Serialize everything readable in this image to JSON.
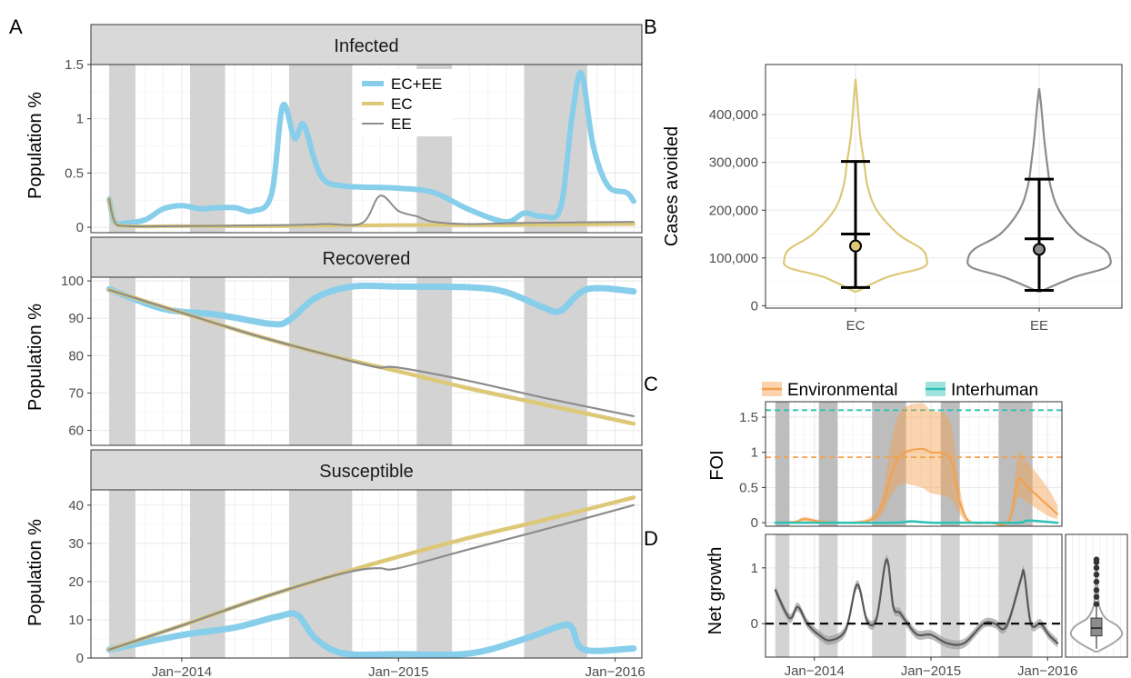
{
  "colors": {
    "ec_ee": "#87CEEB",
    "ec": "#DDC877",
    "ee": "#8C8C8C",
    "environmental": "#F5A04C",
    "interhuman": "#2CC1B5",
    "season_band": "#D3D3D3",
    "grid": "#EBEBEB",
    "strip": "#D9D9D9"
  },
  "panel_letters": [
    "A",
    "B",
    "C",
    "D"
  ],
  "chart_data": [
    {
      "id": "infected",
      "type": "line",
      "panel": "A",
      "strip": "Infected",
      "ylabel": "Population %",
      "ylim": [
        -0.05,
        1.5
      ],
      "yticks": [
        0,
        0.5,
        1,
        1.5
      ],
      "ytick_labels": [
        "0",
        "0.5",
        "1",
        "1.5"
      ],
      "xlim": [
        "2013-08-01",
        "2016-02-15"
      ],
      "xticks": [
        "2014-01-01",
        "2015-01-01",
        "2016-01-01"
      ],
      "xtick_labels": [
        "Jan−2014",
        "Jan−2015",
        "Jan−2016"
      ],
      "show_xticks": false,
      "legend": [
        {
          "name": "EC+EE",
          "color": "ec_ee"
        },
        {
          "name": "EC",
          "color": "ec"
        },
        {
          "name": "EE",
          "color": "ee"
        }
      ],
      "series": [
        {
          "name": "EC+EE",
          "color": "ec_ee",
          "x": [
            "2013-09-01",
            "2013-09-10",
            "2013-10-01",
            "2013-11-01",
            "2013-12-01",
            "2014-01-01",
            "2014-02-01",
            "2014-03-01",
            "2014-04-01",
            "2014-05-01",
            "2014-06-01",
            "2014-06-20",
            "2014-07-10",
            "2014-07-25",
            "2014-08-15",
            "2014-09-01",
            "2014-10-01",
            "2014-11-01",
            "2015-01-01",
            "2015-03-01",
            "2015-05-01",
            "2015-07-01",
            "2015-08-01",
            "2015-09-01",
            "2015-10-01",
            "2015-10-20",
            "2015-11-05",
            "2015-11-25",
            "2015-12-20",
            "2016-01-20",
            "2016-02-01"
          ],
          "y": [
            0.26,
            0.05,
            0.04,
            0.07,
            0.17,
            0.2,
            0.17,
            0.18,
            0.18,
            0.15,
            0.3,
            1.12,
            0.82,
            0.95,
            0.58,
            0.42,
            0.38,
            0.37,
            0.36,
            0.32,
            0.16,
            0.05,
            0.13,
            0.1,
            0.18,
            1.0,
            1.42,
            0.75,
            0.38,
            0.32,
            0.24
          ]
        },
        {
          "name": "EC",
          "color": "ec",
          "x": [
            "2013-09-01",
            "2013-09-10",
            "2013-10-01",
            "2014-01-01",
            "2014-07-01",
            "2015-01-01",
            "2015-07-01",
            "2016-02-01"
          ],
          "y": [
            0.26,
            0.05,
            0.01,
            0.01,
            0.01,
            0.02,
            0.02,
            0.03
          ]
        },
        {
          "name": "EE",
          "color": "ee",
          "x": [
            "2013-09-01",
            "2013-09-10",
            "2013-10-01",
            "2014-01-01",
            "2014-07-01",
            "2014-09-01",
            "2014-11-01",
            "2014-12-01",
            "2015-01-01",
            "2015-02-01",
            "2015-03-01",
            "2015-05-01",
            "2015-08-01",
            "2016-02-01"
          ],
          "y": [
            0.26,
            0.05,
            0.01,
            0.01,
            0.02,
            0.03,
            0.04,
            0.29,
            0.15,
            0.1,
            0.05,
            0.03,
            0.04,
            0.05
          ]
        }
      ]
    },
    {
      "id": "recovered",
      "type": "line",
      "panel": "A",
      "strip": "Recovered",
      "ylabel": "Population %",
      "ylim": [
        56,
        101
      ],
      "yticks": [
        60,
        70,
        80,
        90,
        100
      ],
      "ytick_labels": [
        "60",
        "70",
        "80",
        "90",
        "100"
      ],
      "xlim": [
        "2013-08-01",
        "2016-02-15"
      ],
      "xticks": [
        "2014-01-01",
        "2015-01-01",
        "2016-01-01"
      ],
      "xtick_labels": [
        "Jan−2014",
        "Jan−2015",
        "Jan−2016"
      ],
      "show_xticks": false,
      "series": [
        {
          "name": "EC+EE",
          "color": "ec_ee",
          "x": [
            "2013-09-01",
            "2013-12-01",
            "2014-03-01",
            "2014-06-01",
            "2014-07-01",
            "2014-08-15",
            "2014-10-15",
            "2015-01-01",
            "2015-05-01",
            "2015-07-01",
            "2015-09-01",
            "2015-10-01",
            "2015-11-15",
            "2016-02-01"
          ],
          "y": [
            97.8,
            92.5,
            91,
            88.5,
            89.5,
            95.5,
            98.5,
            98.5,
            98.3,
            97,
            93,
            92,
            97.8,
            97.2
          ]
        },
        {
          "name": "EC",
          "color": "ec",
          "x": [
            "2013-09-01",
            "2014-01-01",
            "2014-05-01",
            "2014-09-01",
            "2015-01-01",
            "2015-05-01",
            "2015-09-01",
            "2016-02-01"
          ],
          "y": [
            97.6,
            91.5,
            85.6,
            80.3,
            75.8,
            71.2,
            67,
            61.8
          ]
        },
        {
          "name": "EE",
          "color": "ee",
          "x": [
            "2013-09-01",
            "2014-01-01",
            "2014-05-01",
            "2014-09-01",
            "2014-11-01",
            "2014-12-01",
            "2015-01-01",
            "2015-05-01",
            "2015-09-01",
            "2016-02-01"
          ],
          "y": [
            97.6,
            91.5,
            85.6,
            80.3,
            77.8,
            76.8,
            76.8,
            73.2,
            68.8,
            63.8
          ]
        }
      ]
    },
    {
      "id": "susceptible",
      "type": "line",
      "panel": "A",
      "strip": "Susceptible",
      "ylabel": "Population %",
      "ylim": [
        0,
        44
      ],
      "yticks": [
        0,
        10,
        20,
        30,
        40
      ],
      "ytick_labels": [
        "0",
        "10",
        "20",
        "30",
        "40"
      ],
      "xlim": [
        "2013-08-01",
        "2016-02-15"
      ],
      "xticks": [
        "2014-01-01",
        "2015-01-01",
        "2016-01-01"
      ],
      "xtick_labels": [
        "Jan−2014",
        "Jan−2015",
        "Jan−2016"
      ],
      "show_xticks": true,
      "series": [
        {
          "name": "EC+EE",
          "color": "ec_ee",
          "x": [
            "2013-09-01",
            "2014-01-01",
            "2014-04-01",
            "2014-06-15",
            "2014-07-15",
            "2014-08-15",
            "2014-10-01",
            "2015-01-01",
            "2015-05-01",
            "2015-08-01",
            "2015-10-01",
            "2015-10-20",
            "2015-11-10",
            "2016-02-01"
          ],
          "y": [
            2.2,
            6,
            8,
            11,
            11.2,
            5,
            1.2,
            1,
            1.2,
            5,
            8.4,
            8,
            2.2,
            2.5
          ]
        },
        {
          "name": "EC",
          "color": "ec",
          "x": [
            "2013-09-01",
            "2014-01-01",
            "2014-05-01",
            "2014-09-01",
            "2015-01-01",
            "2015-05-01",
            "2015-09-01",
            "2016-02-01"
          ],
          "y": [
            2.2,
            8.5,
            15,
            21,
            26.5,
            31.5,
            36,
            42
          ]
        },
        {
          "name": "EE",
          "color": "ee",
          "x": [
            "2013-09-01",
            "2014-01-01",
            "2014-05-01",
            "2014-09-01",
            "2014-11-01",
            "2014-12-01",
            "2015-01-01",
            "2015-05-01",
            "2015-09-01",
            "2016-02-01"
          ],
          "y": [
            2.2,
            8.5,
            15,
            21,
            23.2,
            23.5,
            23.5,
            28.5,
            33.5,
            40
          ]
        }
      ]
    },
    {
      "id": "cases-avoided",
      "type": "violin",
      "panel": "B",
      "ylabel": "Cases avoided",
      "ylim": [
        -5000,
        505000
      ],
      "yticks": [
        0,
        100000,
        200000,
        300000,
        400000
      ],
      "ytick_labels": [
        "0",
        "100,000",
        "200,000",
        "300,000",
        "400,000"
      ],
      "categories": [
        "EC",
        "EE"
      ],
      "groups": [
        {
          "name": "EC",
          "color": "ec",
          "density_y": [
            30000,
            60000,
            80000,
            100000,
            120000,
            150000,
            200000,
            250000,
            300000,
            350000,
            400000,
            440000,
            475000
          ],
          "density_w": [
            0.02,
            0.45,
            0.95,
            1.0,
            0.92,
            0.6,
            0.3,
            0.17,
            0.12,
            0.07,
            0.04,
            0.02,
            0.0
          ],
          "point": 125000,
          "median": 150000,
          "lower": 38000,
          "upper": 302000
        },
        {
          "name": "EE",
          "color": "ee",
          "density_y": [
            30000,
            60000,
            80000,
            100000,
            120000,
            150000,
            200000,
            250000,
            300000,
            350000,
            400000,
            430000,
            455000
          ],
          "density_w": [
            0.02,
            0.5,
            0.95,
            1.0,
            0.9,
            0.55,
            0.28,
            0.16,
            0.11,
            0.07,
            0.04,
            0.02,
            0.0
          ],
          "point": 118000,
          "median": 140000,
          "lower": 32000,
          "upper": 265000
        }
      ]
    },
    {
      "id": "foi",
      "type": "line",
      "panel": "C",
      "ylabel": "FOI",
      "ylim": [
        -0.05,
        1.72
      ],
      "yticks": [
        0,
        0.5,
        1,
        1.5
      ],
      "ytick_labels": [
        "0",
        "0.5",
        "1",
        "1.5"
      ],
      "xlim": [
        "2013-08-01",
        "2016-02-15"
      ],
      "legend": [
        {
          "name": "Environmental",
          "color": "environmental"
        },
        {
          "name": "Interhuman",
          "color": "interhuman"
        }
      ],
      "hlines": [
        {
          "y": 1.6,
          "color": "interhuman"
        },
        {
          "y": 0.93,
          "color": "environmental"
        }
      ],
      "series": [
        {
          "name": "Environmental",
          "color": "environmental",
          "x": [
            "2013-09-01",
            "2013-11-01",
            "2013-12-01",
            "2014-02-01",
            "2014-05-01",
            "2014-07-01",
            "2014-08-01",
            "2014-09-01",
            "2014-10-01",
            "2014-12-01",
            "2015-01-01",
            "2015-03-01",
            "2015-04-01",
            "2015-05-01",
            "2015-07-01",
            "2015-09-01",
            "2015-10-01",
            "2015-11-01",
            "2016-01-01",
            "2016-02-01"
          ],
          "y": [
            0.0,
            0.01,
            0.05,
            0.01,
            0.0,
            0.05,
            0.25,
            0.7,
            0.97,
            1.05,
            1.0,
            0.92,
            0.3,
            0.02,
            0.0,
            0.02,
            0.6,
            0.5,
            0.25,
            0.12
          ],
          "lower": [
            0.0,
            0.0,
            0.02,
            0.0,
            0.0,
            0.02,
            0.12,
            0.4,
            0.55,
            0.5,
            0.42,
            0.35,
            0.12,
            0.0,
            0.0,
            0.0,
            0.35,
            0.28,
            0.1,
            0.05
          ],
          "upper": [
            0.02,
            0.03,
            0.08,
            0.03,
            0.02,
            0.1,
            0.38,
            1.2,
            1.6,
            1.7,
            1.6,
            1.45,
            0.5,
            0.04,
            0.02,
            0.05,
            0.95,
            0.85,
            0.5,
            0.25
          ]
        },
        {
          "name": "Interhuman",
          "color": "interhuman",
          "x": [
            "2013-09-01",
            "2014-01-01",
            "2014-09-01",
            "2014-11-01",
            "2015-01-01",
            "2015-05-01",
            "2015-10-01",
            "2015-11-01",
            "2016-02-01"
          ],
          "y": [
            0.0,
            0.0,
            0.0,
            0.02,
            0.0,
            0.0,
            0.0,
            0.03,
            0.0
          ]
        }
      ]
    },
    {
      "id": "net-growth",
      "type": "line",
      "panel": "D",
      "ylabel": "Net growth",
      "ylim": [
        -0.6,
        1.6
      ],
      "yticks": [
        0,
        1
      ],
      "ytick_labels": [
        "0",
        "1"
      ],
      "xlim": [
        "2013-08-01",
        "2016-02-15"
      ],
      "xticks": [
        "2014-01-01",
        "2015-01-01",
        "2016-01-01"
      ],
      "xtick_labels": [
        "Jan−2014",
        "Jan−2015",
        "Jan−2016"
      ],
      "hline": 0,
      "series": [
        {
          "name": "Net growth",
          "color": "ee",
          "x": [
            "2013-09-01",
            "2013-10-15",
            "2013-11-10",
            "2013-12-10",
            "2014-01-15",
            "2014-02-20",
            "2014-04-10",
            "2014-05-15",
            "2014-06-15",
            "2014-07-15",
            "2014-08-15",
            "2014-09-05",
            "2014-09-25",
            "2014-10-20",
            "2014-11-20",
            "2015-01-01",
            "2015-02-20",
            "2015-04-15",
            "2015-06-15",
            "2015-07-20",
            "2015-08-15",
            "2015-09-05",
            "2015-10-10",
            "2015-10-20",
            "2015-11-10",
            "2015-12-10",
            "2016-01-05",
            "2016-02-01"
          ],
          "y": [
            0.6,
            0.1,
            0.3,
            0.0,
            -0.2,
            -0.3,
            -0.1,
            0.7,
            0.05,
            0.1,
            1.15,
            0.3,
            0.2,
            0.0,
            -0.2,
            -0.2,
            -0.35,
            -0.35,
            0.0,
            0.0,
            -0.1,
            0.1,
            0.8,
            0.9,
            0.0,
            0.0,
            -0.2,
            -0.35
          ],
          "band": 0.08
        }
      ]
    }
  ],
  "net_growth_violin": {
    "type": "violin",
    "ylim": [
      -0.6,
      1.6
    ],
    "density_y": [
      -0.5,
      -0.35,
      -0.2,
      -0.05,
      0.1,
      0.3,
      0.5,
      0.7,
      0.9,
      1.1
    ],
    "density_w": [
      0.05,
      0.65,
      1.0,
      0.85,
      0.35,
      0.12,
      0.06,
      0.04,
      0.03,
      0.02
    ],
    "q1": -0.22,
    "median": -0.08,
    "q3": 0.1,
    "whisker_low": -0.45,
    "whisker_high": 0.3,
    "outliers": [
      0.35,
      0.48,
      0.6,
      0.75,
      0.88,
      1.0,
      1.1,
      1.15
    ]
  },
  "season_bands": [
    [
      "2013-09-01",
      "2013-10-15"
    ],
    [
      "2014-01-15",
      "2014-03-15"
    ],
    [
      "2014-07-01",
      "2014-10-15"
    ],
    [
      "2015-02-01",
      "2015-04-01"
    ],
    [
      "2015-08-01",
      "2015-11-15"
    ]
  ]
}
